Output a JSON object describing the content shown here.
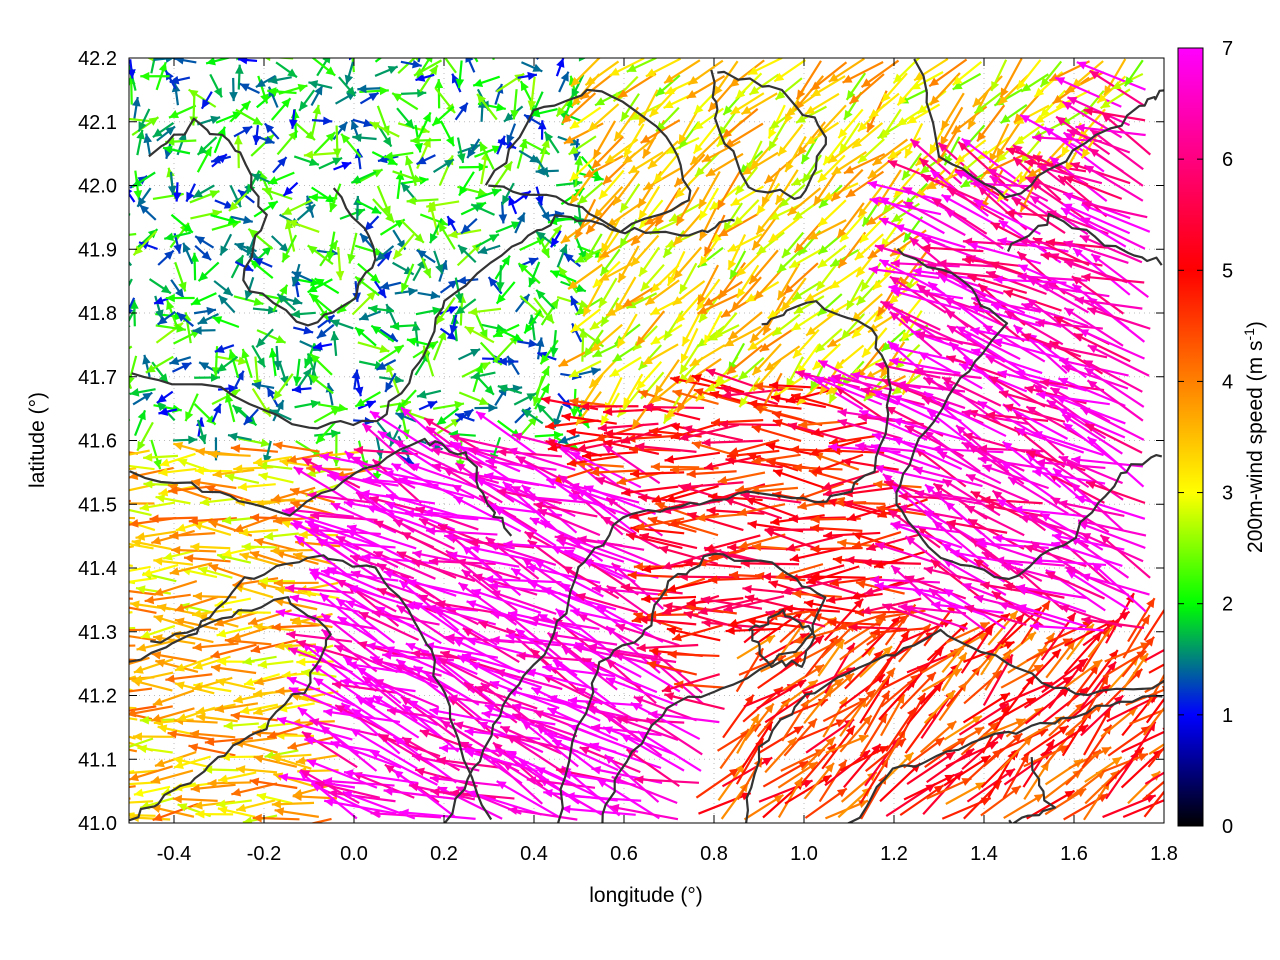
{
  "chart_data": {
    "type": "vector-field",
    "xlabel": "longitude (°)",
    "ylabel": "latitude (°)",
    "xlim": [
      -0.5,
      1.8
    ],
    "ylim": [
      41.0,
      42.2
    ],
    "xticks": [
      "-0.4",
      "-0.2",
      "0.0",
      "0.2",
      "0.4",
      "0.6",
      "0.8",
      "1.0",
      "1.2",
      "1.4",
      "1.6",
      "1.8"
    ],
    "yticks": [
      "41.0",
      "41.1",
      "41.2",
      "41.3",
      "41.4",
      "41.5",
      "41.6",
      "41.7",
      "41.8",
      "41.9",
      "42.0",
      "42.1",
      "42.2"
    ],
    "grid": "dotted",
    "colorbar": {
      "label_main": "200m-wind speed (m s",
      "label_sup": "-1",
      "label_end": ")",
      "min": 0,
      "max": 7,
      "ticks": [
        "0",
        "1",
        "2",
        "3",
        "4",
        "5",
        "6",
        "7"
      ],
      "colormap": [
        "#000000",
        "#0000ff",
        "#00ff00",
        "#ffff00",
        "#ff8000",
        "#ff0000",
        "#ff00ff"
      ]
    },
    "vector_field_regions": [
      {
        "region": "north-west",
        "x": [
          -0.5,
          0.5
        ],
        "y": [
          41.6,
          42.2
        ],
        "speed": 1.8,
        "direction": "mixed"
      },
      {
        "region": "north-center",
        "x": [
          0.5,
          1.3
        ],
        "y": [
          41.7,
          42.2
        ],
        "speed": 3.2,
        "direction": "south-west"
      },
      {
        "region": "south-west",
        "x": [
          -0.5,
          0.0
        ],
        "y": [
          41.0,
          41.6
        ],
        "speed": 3.5,
        "direction": "west"
      },
      {
        "region": "south-center",
        "x": [
          0.0,
          0.7
        ],
        "y": [
          41.0,
          41.55
        ],
        "speed": 6.8,
        "direction": "west-north-west"
      },
      {
        "region": "center",
        "x": [
          0.7,
          1.3
        ],
        "y": [
          41.3,
          41.55
        ],
        "speed": 5.0,
        "direction": "west"
      },
      {
        "region": "south-east",
        "x": [
          0.85,
          1.8
        ],
        "y": [
          41.0,
          41.3
        ],
        "speed": 4.6,
        "direction": "north-east"
      },
      {
        "region": "east",
        "x": [
          1.3,
          1.8
        ],
        "y": [
          41.3,
          42.0
        ],
        "speed": 6.5,
        "direction": "west-north-west"
      }
    ],
    "contours": "terrain elevation contours (unlabeled)"
  }
}
